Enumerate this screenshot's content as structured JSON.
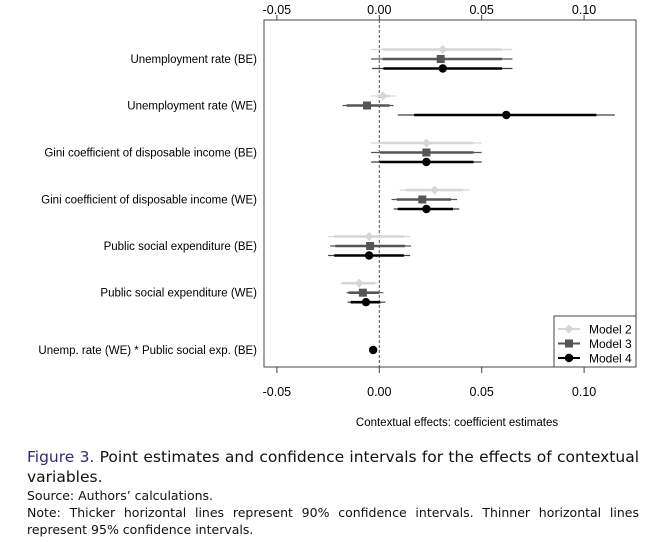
{
  "chart_data": {
    "type": "forest",
    "title": "",
    "xlabel": "Contextual effects: coefficient estimates",
    "xlim": [
      -0.055,
      0.125
    ],
    "xticks": [
      -0.05,
      0.0,
      0.05,
      0.1
    ],
    "xtick_labels": [
      "-0.05",
      "0.00",
      "0.05",
      "0.10"
    ],
    "reference_line": 0,
    "legend_position": "bottom-right",
    "categories": [
      "Unemployment rate (BE)",
      "Unemployment rate (WE)",
      "Gini coefficient of disposable income (BE)",
      "Gini coefficient of disposable income (WE)",
      "Public social expenditure (BE)",
      "Public social expenditure (WE)",
      "Unemp. rate (WE) * Public social exp. (BE)"
    ],
    "series": [
      {
        "name": "Model 2",
        "color": "#d6d6d6",
        "marker": "diamond",
        "estimates": [
          0.031,
          0.0017,
          0.023,
          0.027,
          -0.005,
          -0.0098,
          null
        ],
        "ci90": [
          [
            0.0016,
            0.06
          ],
          [
            -0.001,
            0.005
          ],
          [
            0.0003,
            0.046
          ],
          [
            0.013,
            0.041
          ],
          [
            -0.022,
            0.012
          ],
          [
            -0.018,
            -0.002
          ],
          null
        ],
        "ci95": [
          [
            -0.004,
            0.065
          ],
          [
            -0.004,
            0.008
          ],
          [
            -0.004,
            0.05
          ],
          [
            0.01,
            0.044
          ],
          [
            -0.025,
            0.015
          ],
          [
            -0.019,
            -0.001
          ],
          null
        ]
      },
      {
        "name": "Model 3",
        "color": "#555555",
        "marker": "square",
        "estimates": [
          0.03,
          -0.006,
          0.023,
          0.021,
          -0.0045,
          -0.008,
          null
        ],
        "ci90": [
          [
            0.0016,
            0.06
          ],
          [
            -0.016,
            0.005
          ],
          [
            0.0003,
            0.046
          ],
          [
            0.0085,
            0.035
          ],
          [
            -0.0215,
            0.0125
          ],
          [
            -0.015,
            0.0
          ],
          null
        ],
        "ci95": [
          [
            -0.004,
            0.065
          ],
          [
            -0.018,
            0.007
          ],
          [
            -0.004,
            0.05
          ],
          [
            0.006,
            0.038
          ],
          [
            -0.024,
            0.0155
          ],
          [
            -0.016,
            0.002
          ],
          null
        ]
      },
      {
        "name": "Model 4",
        "color": "#000000",
        "marker": "circle",
        "estimates": [
          0.031,
          0.062,
          0.023,
          0.023,
          -0.005,
          -0.0065,
          -0.003
        ],
        "ci90": [
          [
            0.002,
            0.06
          ],
          [
            0.017,
            0.106
          ],
          [
            0.0003,
            0.046
          ],
          [
            0.009,
            0.036
          ],
          [
            -0.022,
            0.012
          ],
          [
            -0.014,
            0.0005
          ],
          null
        ],
        "ci95": [
          [
            -0.0035,
            0.065
          ],
          [
            0.009,
            0.115
          ],
          [
            -0.004,
            0.05
          ],
          [
            0.007,
            0.039
          ],
          [
            -0.025,
            0.015
          ],
          [
            -0.0155,
            0.003
          ],
          null
        ]
      }
    ]
  },
  "caption": {
    "figure_label": "Figure 3.",
    "title": "Point estimates and confidence intervals for the effects of contextual variables.",
    "source": "Source: Authors’ calculations.",
    "note": "Note: Thicker horizontal lines represent 90% confidence intervals. Thinner horizontal lines represent 95% confidence intervals."
  }
}
